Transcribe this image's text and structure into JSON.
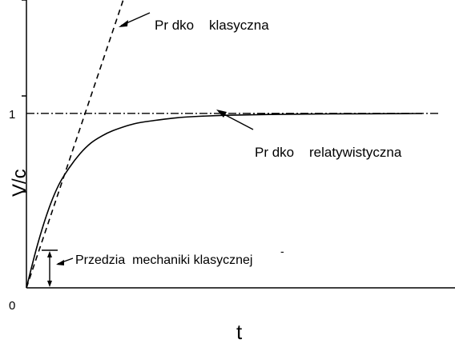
{
  "chart_data": {
    "type": "line",
    "xlabel": "t",
    "ylabel": "V/c",
    "xlim": [
      0,
      10
    ],
    "ylim": [
      0,
      1.65
    ],
    "y_ticks": [
      0.55,
      1.1,
      1.65
    ],
    "y_tick_labels": [
      "",
      "1",
      ""
    ],
    "origin_label": "0",
    "asymptote_y": 1.0,
    "series": [
      {
        "name": "Pr dko relatywistyczna",
        "style": "solid",
        "x": [
          0,
          0.25,
          0.5,
          0.75,
          1.0,
          1.25,
          1.5,
          1.75,
          2.0,
          2.5,
          3.0,
          3.5,
          4.0,
          4.5,
          5.0,
          6.0,
          7.0,
          8.0,
          9.0,
          9.2
        ],
        "y": [
          0.0,
          0.24,
          0.44,
          0.59,
          0.69,
          0.77,
          0.83,
          0.87,
          0.9,
          0.94,
          0.96,
          0.975,
          0.983,
          0.988,
          0.991,
          0.995,
          0.997,
          0.998,
          0.999,
          0.999
        ]
      },
      {
        "name": "Pr dko klasyczna",
        "style": "dashed",
        "x": [
          0,
          2.25
        ],
        "y": [
          0,
          1.65
        ]
      }
    ],
    "annotations": [
      {
        "id": "classical",
        "text": "Pr dko    klasyczna"
      },
      {
        "id": "relativistic",
        "text": "Pr dko    relatywistyczna"
      },
      {
        "id": "range",
        "text": "Przedzia  mechaniki klasycznej",
        "y_range": [
          0,
          0.2
        ]
      }
    ]
  }
}
